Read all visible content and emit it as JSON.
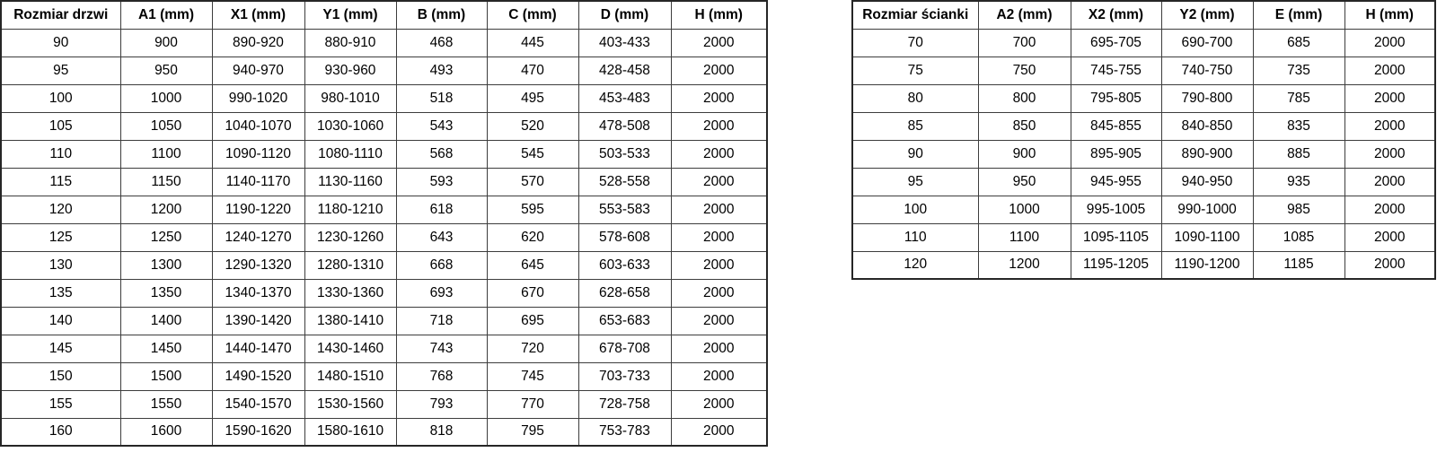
{
  "page": {
    "background_color": "#ffffff",
    "text_color": "#000000",
    "border_color": "#3d3d3d"
  },
  "tables": {
    "door_sizes": {
      "headers": [
        "Rozmiar drzwi",
        "A1 (mm)",
        "X1 (mm)",
        "Y1 (mm)",
        "B (mm)",
        "C (mm)",
        "D (mm)",
        "H (mm)"
      ],
      "rows": [
        [
          "90",
          "900",
          "890-920",
          "880-910",
          "468",
          "445",
          "403-433",
          "2000"
        ],
        [
          "95",
          "950",
          "940-970",
          "930-960",
          "493",
          "470",
          "428-458",
          "2000"
        ],
        [
          "100",
          "1000",
          "990-1020",
          "980-1010",
          "518",
          "495",
          "453-483",
          "2000"
        ],
        [
          "105",
          "1050",
          "1040-1070",
          "1030-1060",
          "543",
          "520",
          "478-508",
          "2000"
        ],
        [
          "110",
          "1100",
          "1090-1120",
          "1080-1110",
          "568",
          "545",
          "503-533",
          "2000"
        ],
        [
          "115",
          "1150",
          "1140-1170",
          "1130-1160",
          "593",
          "570",
          "528-558",
          "2000"
        ],
        [
          "120",
          "1200",
          "1190-1220",
          "1180-1210",
          "618",
          "595",
          "553-583",
          "2000"
        ],
        [
          "125",
          "1250",
          "1240-1270",
          "1230-1260",
          "643",
          "620",
          "578-608",
          "2000"
        ],
        [
          "130",
          "1300",
          "1290-1320",
          "1280-1310",
          "668",
          "645",
          "603-633",
          "2000"
        ],
        [
          "135",
          "1350",
          "1340-1370",
          "1330-1360",
          "693",
          "670",
          "628-658",
          "2000"
        ],
        [
          "140",
          "1400",
          "1390-1420",
          "1380-1410",
          "718",
          "695",
          "653-683",
          "2000"
        ],
        [
          "145",
          "1450",
          "1440-1470",
          "1430-1460",
          "743",
          "720",
          "678-708",
          "2000"
        ],
        [
          "150",
          "1500",
          "1490-1520",
          "1480-1510",
          "768",
          "745",
          "703-733",
          "2000"
        ],
        [
          "155",
          "1550",
          "1540-1570",
          "1530-1560",
          "793",
          "770",
          "728-758",
          "2000"
        ],
        [
          "160",
          "1600",
          "1590-1620",
          "1580-1610",
          "818",
          "795",
          "753-783",
          "2000"
        ]
      ]
    },
    "panel_sizes": {
      "headers": [
        "Rozmiar ścianki",
        "A2 (mm)",
        "X2 (mm)",
        "Y2 (mm)",
        "E (mm)",
        "H (mm)"
      ],
      "rows": [
        [
          "70",
          "700",
          "695-705",
          "690-700",
          "685",
          "2000"
        ],
        [
          "75",
          "750",
          "745-755",
          "740-750",
          "735",
          "2000"
        ],
        [
          "80",
          "800",
          "795-805",
          "790-800",
          "785",
          "2000"
        ],
        [
          "85",
          "850",
          "845-855",
          "840-850",
          "835",
          "2000"
        ],
        [
          "90",
          "900",
          "895-905",
          "890-900",
          "885",
          "2000"
        ],
        [
          "95",
          "950",
          "945-955",
          "940-950",
          "935",
          "2000"
        ],
        [
          "100",
          "1000",
          "995-1005",
          "990-1000",
          "985",
          "2000"
        ],
        [
          "110",
          "1100",
          "1095-1105",
          "1090-1100",
          "1085",
          "2000"
        ],
        [
          "120",
          "1200",
          "1195-1205",
          "1190-1200",
          "1185",
          "2000"
        ]
      ]
    }
  }
}
